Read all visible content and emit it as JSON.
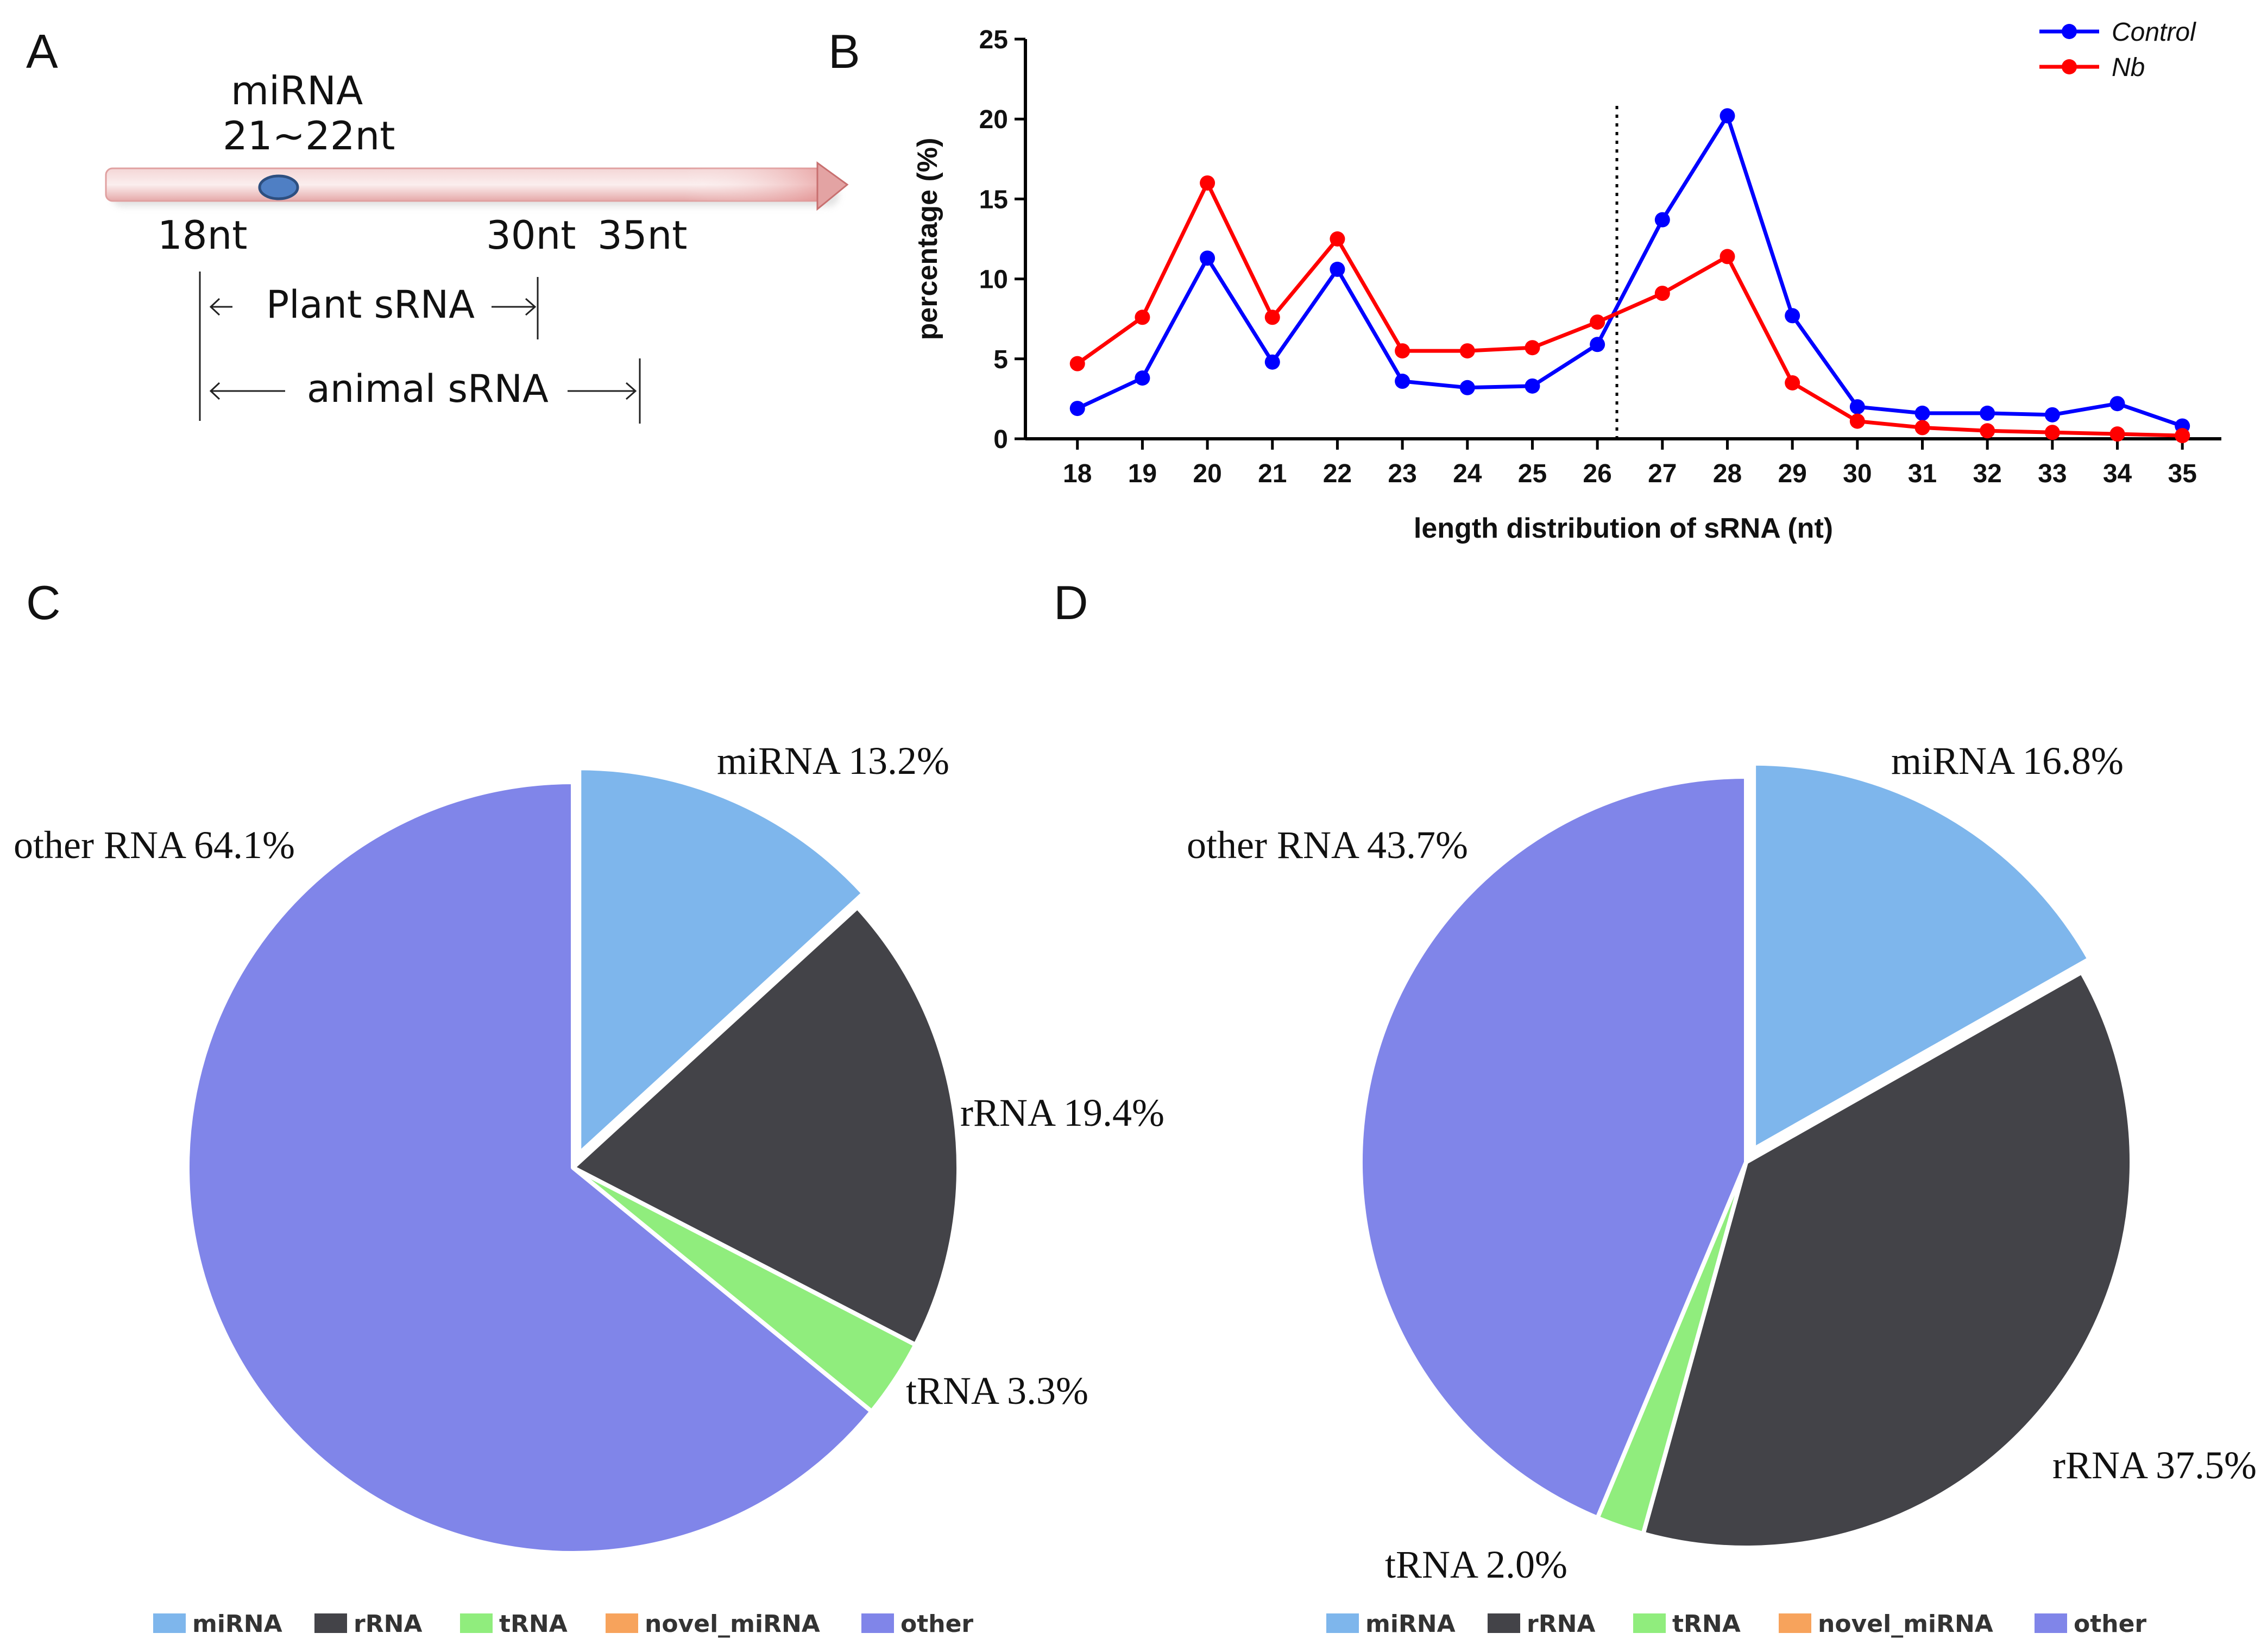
{
  "panels": {
    "a": "A",
    "b": "B",
    "c": "C",
    "d": "D"
  },
  "diagram": {
    "mirna_label": "miRNA",
    "mirna_range": "21~22nt",
    "pos_18": "18nt",
    "pos_30": "30nt",
    "pos_35": "35nt",
    "plant_label": "Plant sRNA",
    "animal_label": "animal sRNA",
    "marker_color": "#4f7fc4"
  },
  "chart_data": [
    {
      "type": "line",
      "xlabel": "length distribution of sRNA (nt)",
      "ylabel": "percentage (%)",
      "x": [
        18,
        19,
        20,
        21,
        22,
        23,
        24,
        25,
        26,
        27,
        28,
        29,
        30,
        31,
        32,
        33,
        34,
        35
      ],
      "ylim": [
        0,
        25
      ],
      "yticks": [
        0,
        5,
        10,
        15,
        20,
        25
      ],
      "divider_x": 26.3,
      "legend_position": "top-right",
      "series": [
        {
          "name": "Control",
          "color": "#0000ff",
          "values": [
            1.9,
            3.8,
            11.3,
            4.8,
            10.6,
            3.6,
            3.2,
            3.3,
            5.9,
            13.7,
            20.2,
            7.7,
            2.0,
            1.6,
            1.6,
            1.5,
            2.2,
            0.8
          ]
        },
        {
          "name": "Nb",
          "color": "#ff0000",
          "values": [
            4.7,
            7.6,
            16.0,
            7.6,
            12.5,
            5.5,
            5.5,
            5.7,
            7.3,
            9.1,
            11.4,
            3.5,
            1.1,
            0.7,
            0.5,
            0.4,
            0.3,
            0.2
          ]
        }
      ]
    },
    {
      "type": "pie",
      "slices": [
        {
          "name": "miRNA",
          "value": 13.2,
          "color": "#7eb6ec",
          "label": "miRNA 13.2%",
          "exploded": true
        },
        {
          "name": "rRNA",
          "value": 19.4,
          "color": "#434348",
          "label": "rRNA 19.4%"
        },
        {
          "name": "tRNA",
          "value": 3.3,
          "color": "#90ed7d",
          "label": "tRNA 3.3%"
        },
        {
          "name": "novel_miRNA",
          "value": 0,
          "color": "#f7a35c",
          "label": ""
        },
        {
          "name": "other",
          "value": 64.1,
          "color": "#8085e9",
          "label": "other RNA 64.1%"
        }
      ],
      "legend": [
        "miRNA",
        "rRNA",
        "tRNA",
        "novel_miRNA",
        "other"
      ]
    },
    {
      "type": "pie",
      "slices": [
        {
          "name": "miRNA",
          "value": 16.8,
          "color": "#7eb6ec",
          "label": "miRNA 16.8%",
          "exploded": true
        },
        {
          "name": "rRNA",
          "value": 37.5,
          "color": "#434348",
          "label": "rRNA 37.5%"
        },
        {
          "name": "tRNA",
          "value": 2.0,
          "color": "#90ed7d",
          "label": "tRNA 2.0%"
        },
        {
          "name": "novel_miRNA",
          "value": 0,
          "color": "#f7a35c",
          "label": ""
        },
        {
          "name": "other",
          "value": 43.7,
          "color": "#8085e9",
          "label": "other RNA 43.7%"
        }
      ],
      "legend": [
        "miRNA",
        "rRNA",
        "tRNA",
        "novel_miRNA",
        "other"
      ]
    }
  ]
}
